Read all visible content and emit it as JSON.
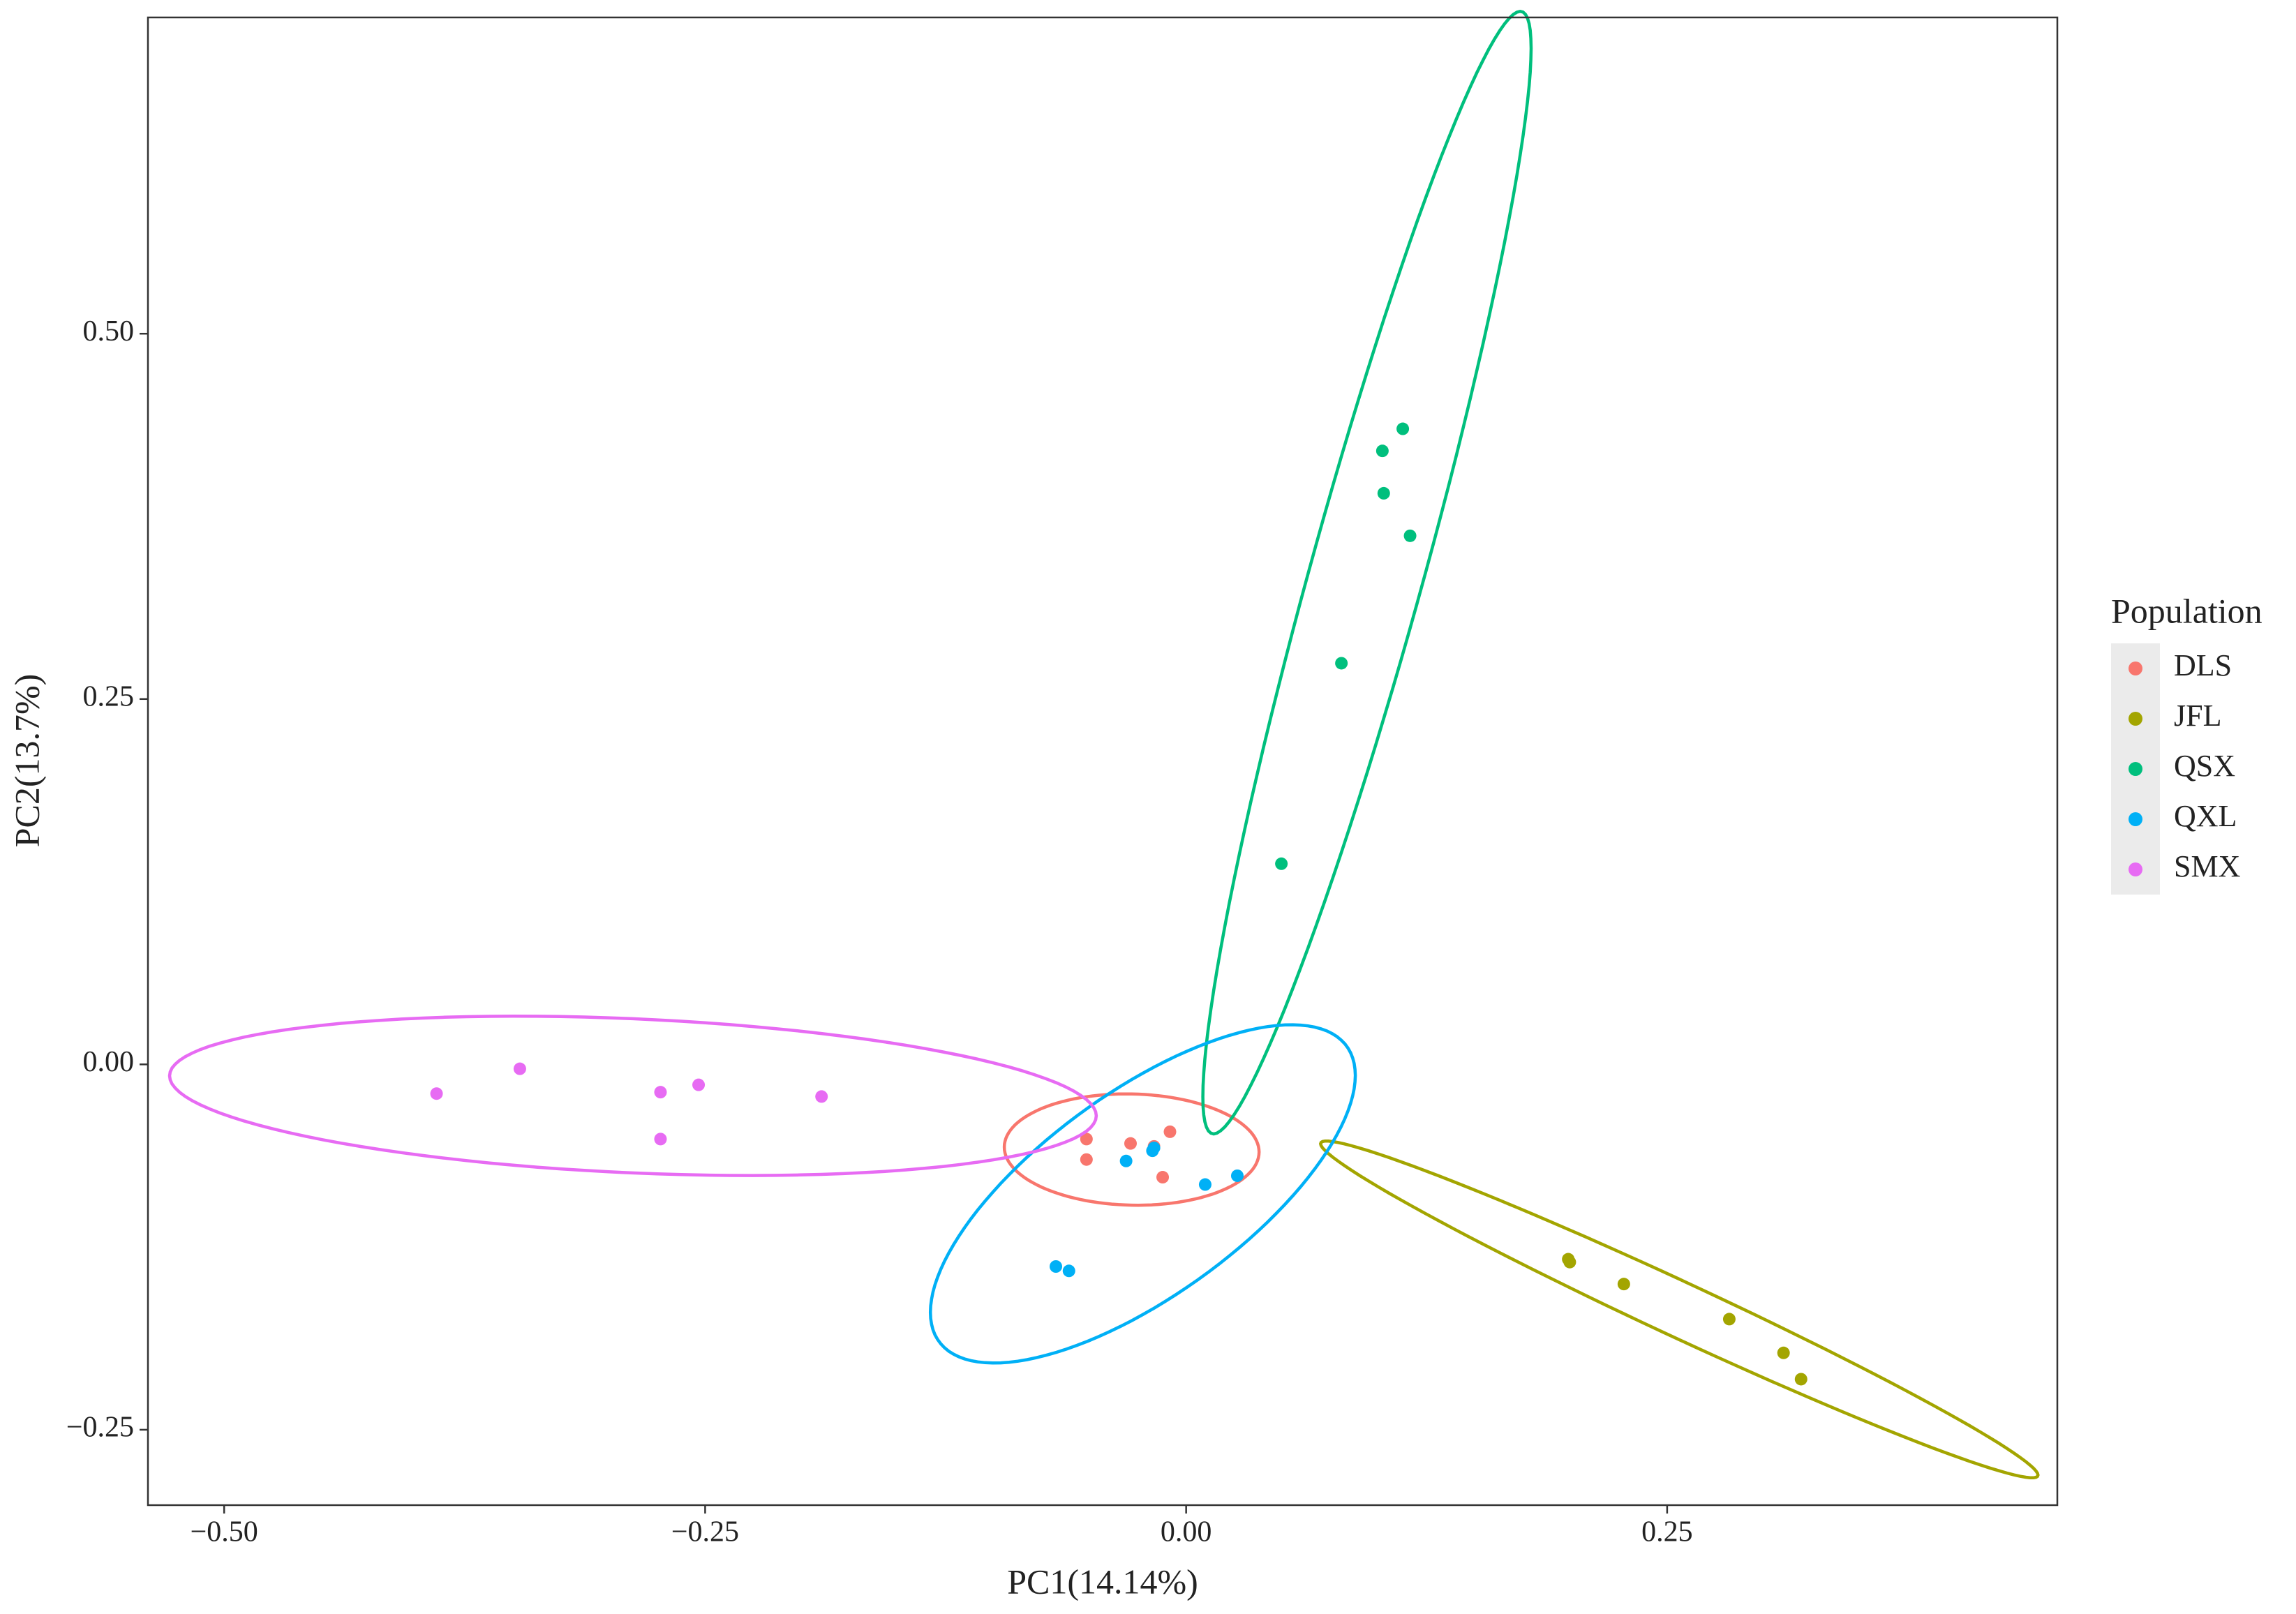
{
  "chart_data": {
    "type": "scatter",
    "x_label": "PC1(14.14%)",
    "y_label": "PC2(13.7%)",
    "legend_title": "Population",
    "legend_position": "right",
    "xlim": [
      -0.5396,
      0.4528
    ],
    "ylim": [
      -0.3016,
      0.7164
    ],
    "xticks": [
      {
        "value": -0.5,
        "label": "−0.50"
      },
      {
        "value": -0.25,
        "label": "−0.25"
      },
      {
        "value": 0,
        "label": "0.00"
      },
      0.25
    ],
    "yticks": [
      {
        "value": -0.25,
        "label": "−0.25"
      },
      {
        "value": 0,
        "label": "0.00"
      },
      0.25,
      {
        "value": 0.5,
        "label": "0.50"
      }
    ],
    "grid": false,
    "ellipses": true,
    "series": [
      {
        "name": "DLS",
        "color": "#F8766D",
        "x": [
          -0.0518,
          -0.0518,
          -0.0289,
          -0.0167,
          -0.0084,
          -0.0122
        ],
        "values": [
          -0.0511,
          -0.0651,
          -0.0541,
          -0.0561,
          -0.0461,
          -0.0772
        ]
      },
      {
        "name": "JFL",
        "color": "#A3A500",
        "x": [
          0.1986,
          0.1994,
          0.2275,
          0.2823,
          0.3105,
          0.3196
        ],
        "values": [
          -0.1333,
          -0.1353,
          -0.1503,
          -0.1743,
          -0.1974,
          -0.2154
        ]
      },
      {
        "name": "QSX",
        "color": "#00BF7D",
        "x": [
          0.1126,
          0.102,
          0.1027,
          0.1164,
          0.0807,
          0.0495
        ],
        "values": [
          0.4349,
          0.4198,
          0.3908,
          0.3617,
          0.2745,
          0.1373
        ]
      },
      {
        "name": "QXL",
        "color": "#00B0F6",
        "x": [
          -0.0312,
          -0.0175,
          -0.0167,
          0.0099,
          0.0266,
          -0.0677,
          -0.0609
        ],
        "values": [
          -0.0661,
          -0.0591,
          -0.0571,
          -0.0822,
          -0.0762,
          -0.1383,
          -0.1413
        ]
      },
      {
        "name": "SMX",
        "color": "#E76BF3",
        "x": [
          -0.3896,
          -0.3463,
          -0.2732,
          -0.2534,
          -0.1895,
          -0.2732
        ],
        "values": [
          -0.02,
          -0.003,
          -0.019,
          -0.014,
          -0.022,
          -0.0511
        ]
      }
    ]
  }
}
